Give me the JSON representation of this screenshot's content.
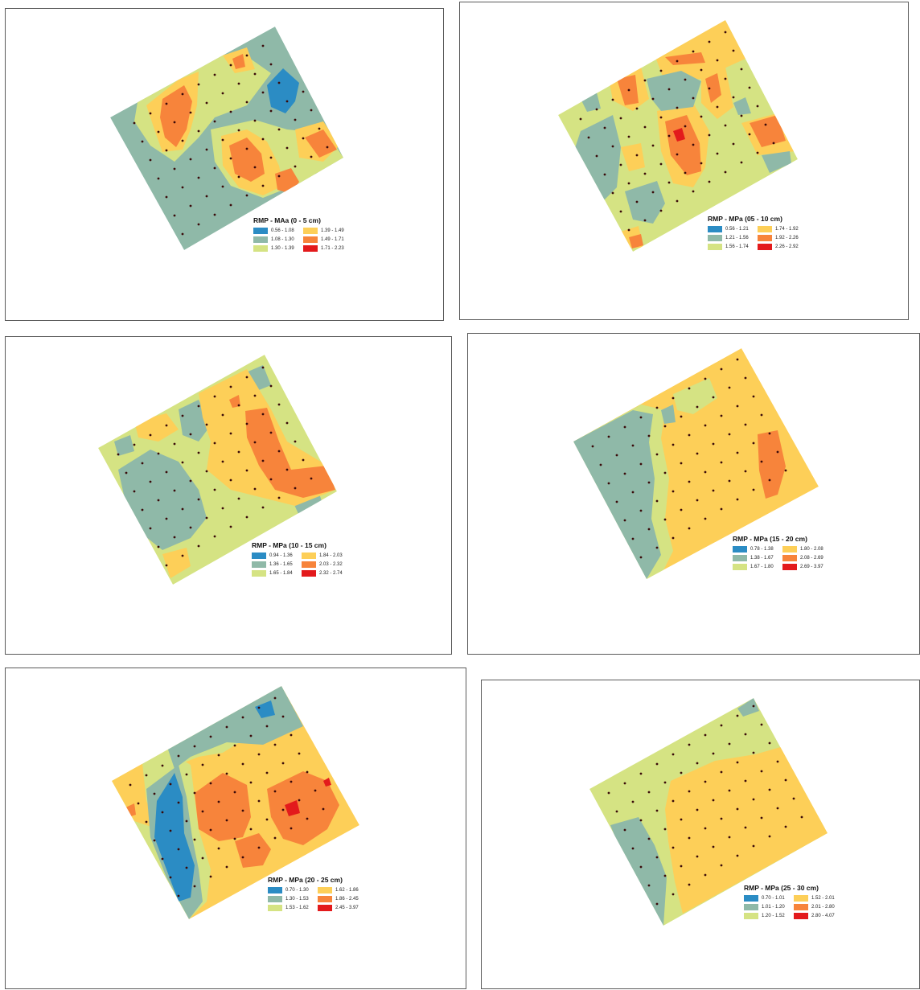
{
  "colors": {
    "class1": "#2b8cc4",
    "class2": "#8fb9a8",
    "class3": "#d5e383",
    "class4": "#fdcf58",
    "class5": "#f7843b",
    "class6": "#e31a1c",
    "sample_point": "#3a0a0a"
  },
  "panels": [
    {
      "title": "RMP - MAa (0 - 5 cm)",
      "legend": [
        "0.56 - 1.08",
        "1.08 - 1.30",
        "1.30 - 1.39",
        "1.39 - 1.49",
        "1.49 - 1.71",
        "1.71 - 2.23"
      ]
    },
    {
      "title": "RMP - MPa (05 - 10 cm)",
      "legend": [
        "0.56 - 1.21",
        "1.21 - 1.56",
        "1.56 - 1.74",
        "1.74 - 1.92",
        "1.92 - 2.26",
        "2.26 - 2.92"
      ]
    },
    {
      "title": "RMP - MPa (10 - 15 cm)",
      "legend": [
        "0.94 - 1.36",
        "1.36 - 1.65",
        "1.65 - 1.84",
        "1.84 - 2.03",
        "2.03 - 2.32",
        "2.32 - 2.74"
      ]
    },
    {
      "title": "RMP - MPa (15 - 20 cm)",
      "legend": [
        "0.78 - 1.38",
        "1.38 - 1.67",
        "1.67 - 1.80",
        "1.80 - 2.08",
        "2.08 - 2.69",
        "2.69 - 3.97"
      ]
    },
    {
      "title": "RMP - MPa (20 - 25 cm)",
      "legend": [
        "0.70 - 1.30",
        "1.30 - 1.53",
        "1.53 - 1.62",
        "1.62 - 1.86",
        "1.86 - 2.45",
        "2.45 - 3.97"
      ]
    },
    {
      "title": "RMP - MPa (25 - 30 cm)",
      "legend": [
        "0.70 - 1.01",
        "1.01 - 1.20",
        "1.20 - 1.52",
        "1.52 - 2.01",
        "2.01 - 2.80",
        "2.80 - 4.07"
      ]
    }
  ]
}
